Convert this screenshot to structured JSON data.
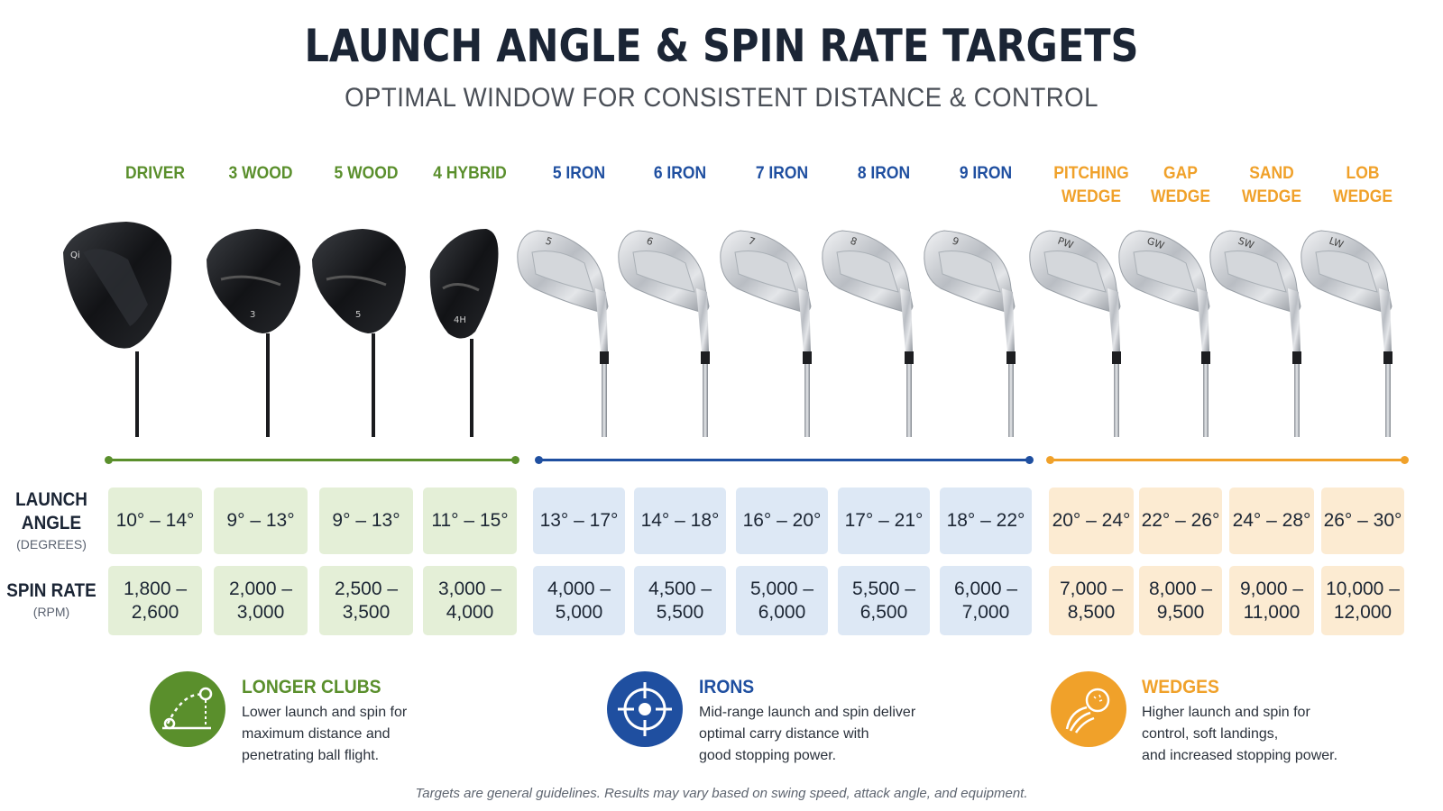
{
  "header": {
    "title": "LAUNCH ANGLE & SPIN RATE TARGETS",
    "subtitle": "OPTIMAL WINDOW FOR CONSISTENT DISTANCE & CONTROL"
  },
  "colors": {
    "green": "#5a8f2c",
    "blue": "#1f4fa0",
    "orange": "#f0a12a"
  },
  "row_labels": {
    "launch": {
      "main_1": "LAUNCH",
      "main_2": "ANGLE",
      "unit": "(DEGREES)"
    },
    "spin": {
      "main": "SPIN RATE",
      "unit": "(RPM)"
    }
  },
  "clubs": [
    {
      "name_1": "DRIVER",
      "name_2": "",
      "group": "green",
      "launch": "10° – 14°",
      "spin_1": "1,800 –",
      "spin_2": "2,600",
      "head": "driver",
      "mark": ""
    },
    {
      "name_1": "3 WOOD",
      "name_2": "",
      "group": "green",
      "launch": "9° – 13°",
      "spin_1": "2,000 –",
      "spin_2": "3,000",
      "head": "wood",
      "mark": "3"
    },
    {
      "name_1": "5 WOOD",
      "name_2": "",
      "group": "green",
      "launch": "9° – 13°",
      "spin_1": "2,500 –",
      "spin_2": "3,500",
      "head": "wood",
      "mark": "5"
    },
    {
      "name_1": "4 HYBRID",
      "name_2": "",
      "group": "green",
      "launch": "11° – 15°",
      "spin_1": "3,000 –",
      "spin_2": "4,000",
      "head": "hybrid",
      "mark": "4H"
    },
    {
      "name_1": "5 IRON",
      "name_2": "",
      "group": "blue",
      "launch": "13° – 17°",
      "spin_1": "4,000 –",
      "spin_2": "5,000",
      "head": "iron",
      "mark": "5"
    },
    {
      "name_1": "6 IRON",
      "name_2": "",
      "group": "blue",
      "launch": "14° – 18°",
      "spin_1": "4,500 –",
      "spin_2": "5,500",
      "head": "iron",
      "mark": "6"
    },
    {
      "name_1": "7 IRON",
      "name_2": "",
      "group": "blue",
      "launch": "16° – 20°",
      "spin_1": "5,000 –",
      "spin_2": "6,000",
      "head": "iron",
      "mark": "7"
    },
    {
      "name_1": "8 IRON",
      "name_2": "",
      "group": "blue",
      "launch": "17° – 21°",
      "spin_1": "5,500 –",
      "spin_2": "6,500",
      "head": "iron",
      "mark": "8"
    },
    {
      "name_1": "9 IRON",
      "name_2": "",
      "group": "blue",
      "launch": "18° – 22°",
      "spin_1": "6,000 –",
      "spin_2": "7,000",
      "head": "iron",
      "mark": "9"
    },
    {
      "name_1": "PITCHING",
      "name_2": "WEDGE",
      "group": "orange",
      "launch": "20° – 24°",
      "spin_1": "7,000 –",
      "spin_2": "8,500",
      "head": "wedge",
      "mark": "PW"
    },
    {
      "name_1": "GAP",
      "name_2": "WEDGE",
      "group": "orange",
      "launch": "22° – 26°",
      "spin_1": "8,000 –",
      "spin_2": "9,500",
      "head": "wedge",
      "mark": "GW"
    },
    {
      "name_1": "SAND",
      "name_2": "WEDGE",
      "group": "orange",
      "launch": "24° – 28°",
      "spin_1": "9,000 –",
      "spin_2": "11,000",
      "head": "wedge",
      "mark": "SW"
    },
    {
      "name_1": "LOB",
      "name_2": "WEDGE",
      "group": "orange",
      "launch": "26° – 30°",
      "spin_1": "10,000 –",
      "spin_2": "12,000",
      "head": "wedge",
      "mark": "LW"
    }
  ],
  "info": [
    {
      "title": "LONGER CLUBS",
      "icon": "trajectory-icon",
      "color": "green",
      "lines": [
        "Lower launch and spin for",
        "maximum distance and",
        "penetrating ball flight."
      ]
    },
    {
      "title": "IRONS",
      "icon": "target-crosshair-icon",
      "color": "blue",
      "lines": [
        "Mid-range launch and spin deliver",
        "optimal carry distance with",
        "good stopping power."
      ]
    },
    {
      "title": "WEDGES",
      "icon": "spinning-ball-icon",
      "color": "orange",
      "lines": [
        "Higher launch and spin for",
        "control, soft landings,",
        "and increased stopping power."
      ]
    }
  ],
  "footnote": "Targets are general guidelines. Results may vary based on swing speed, attack angle, and equipment."
}
